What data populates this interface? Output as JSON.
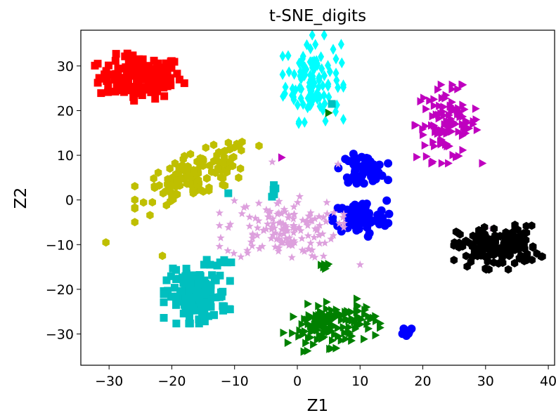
{
  "chart_data": {
    "type": "scatter",
    "title": "t-SNE_digits",
    "xlabel": "Z1",
    "ylabel": "Z2",
    "xlim": [
      -34.5,
      41
    ],
    "ylim": [
      -37,
      38
    ],
    "xticks": [
      -30,
      -20,
      -10,
      0,
      10,
      20,
      30,
      40
    ],
    "yticks": [
      -30,
      -20,
      -10,
      0,
      10,
      20,
      30
    ],
    "xtick_labels": [
      "−30",
      "−20",
      "−10",
      "0",
      "10",
      "20",
      "30",
      "40"
    ],
    "ytick_labels": [
      "−30",
      "−20",
      "−10",
      "0",
      "10",
      "20",
      "30"
    ],
    "grid": false,
    "legend": false,
    "series": [
      {
        "color": "#ff0000",
        "marker": "square",
        "clusters": [
          {
            "cx": -25,
            "cy": 27.5,
            "sx": 3.3,
            "sy": 2.4,
            "n": 150
          }
        ]
      },
      {
        "color": "#00ffff",
        "marker": "diamond",
        "clusters": [
          {
            "cx": 2.5,
            "cy": 27,
            "sx": 2.2,
            "sy": 4.5,
            "n": 110
          }
        ]
      },
      {
        "color": "#bf00bf",
        "marker": "triangle-right",
        "clusters": [
          {
            "cx": 24,
            "cy": 17,
            "sx": 2.5,
            "sy": 4.0,
            "n": 110
          }
        ],
        "points": [
          [
            -2.5,
            9.5
          ]
        ]
      },
      {
        "color": "#bfbf00",
        "marker": "hexagon",
        "clusters": [
          {
            "cx": -16,
            "cy": 5.5,
            "sx": 4.5,
            "sy": 2.5,
            "n": 130,
            "slope": 0.5
          }
        ],
        "points": [
          [
            -30.5,
            -9.5
          ],
          [
            -21.5,
            -12.5
          ]
        ]
      },
      {
        "color": "#0000ff",
        "marker": "circle",
        "clusters": [
          {
            "cx": 10.5,
            "cy": 7,
            "sx": 1.8,
            "sy": 1.5,
            "n": 60
          },
          {
            "cx": 10,
            "cy": -4,
            "sx": 2.1,
            "sy": 1.9,
            "n": 90
          },
          {
            "cx": 17.5,
            "cy": -29.3,
            "sx": 0.6,
            "sy": 0.5,
            "n": 12
          }
        ]
      },
      {
        "color": "#dda0dd",
        "marker": "star",
        "clusters": [
          {
            "cx": -2.5,
            "cy": -6.5,
            "sx": 4.5,
            "sy": 3.3,
            "n": 140
          }
        ],
        "points": [
          [
            -4,
            8.5
          ],
          [
            6.5,
            8
          ],
          [
            10,
            -14.5
          ],
          [
            31,
            -6.5
          ]
        ]
      },
      {
        "color": "#000000",
        "marker": "hexagon",
        "clusters": [
          {
            "cx": 32,
            "cy": -10.5,
            "sx": 3.2,
            "sy": 2.3,
            "n": 150
          }
        ]
      },
      {
        "color": "#00bfbf",
        "marker": "square",
        "clusters": [
          {
            "cx": -16,
            "cy": -21.5,
            "sx": 2.4,
            "sy": 2.8,
            "n": 140
          },
          {
            "cx": -12.5,
            "cy": -13.8,
            "sx": 1.1,
            "sy": 0.4,
            "n": 8
          },
          {
            "cx": -3.5,
            "cy": 2,
            "sx": 0.6,
            "sy": 0.6,
            "n": 6
          }
        ],
        "points": [
          [
            -11,
            1.5
          ],
          [
            5.5,
            21.5
          ]
        ]
      },
      {
        "color": "#008000",
        "marker": "triangle-right",
        "clusters": [
          {
            "cx": 5.5,
            "cy": -28,
            "sx": 3.5,
            "sy": 2.4,
            "n": 140,
            "slope": 0.15
          },
          {
            "cx": 4.3,
            "cy": -14.5,
            "sx": 0.5,
            "sy": 0.4,
            "n": 6
          }
        ],
        "points": [
          [
            5,
            19.5
          ]
        ]
      }
    ]
  }
}
